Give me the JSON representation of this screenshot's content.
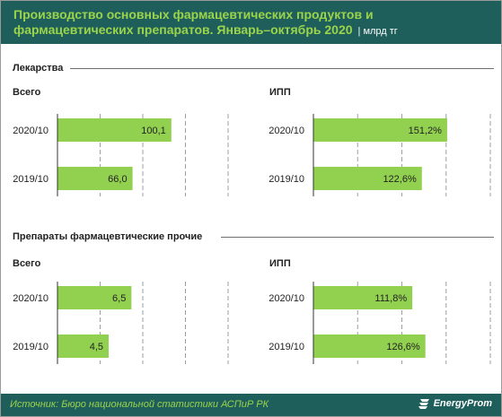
{
  "header": {
    "title": "Производство основных фармацевтических продуктов и фармацевтических препаратов. Январь–октябрь 2020",
    "unit": "| млрд тг"
  },
  "sections": [
    {
      "label": "Лекарства"
    },
    {
      "label": "Препараты  фармацевтические   прочие"
    }
  ],
  "chart_data": [
    {
      "type": "bar",
      "section": "Лекарства",
      "title": "Всего",
      "categories": [
        "2020/10",
        "2019/10"
      ],
      "values": [
        100.1,
        66.0
      ],
      "labels": [
        "100,1",
        "66,0"
      ]
    },
    {
      "type": "bar",
      "section": "Лекарства",
      "title": "ИПП",
      "categories": [
        "2020/10",
        "2019/10"
      ],
      "values": [
        151.2,
        122.6
      ],
      "labels": [
        "151,2%",
        "122,6%"
      ]
    },
    {
      "type": "bar",
      "section": "Препараты  фармацевтические   прочие",
      "title": "Всего",
      "categories": [
        "2020/10",
        "2019/10"
      ],
      "values": [
        6.5,
        4.5
      ],
      "labels": [
        "6,5",
        "4,5"
      ]
    },
    {
      "type": "bar",
      "section": "Препараты  фармацевтические   прочие",
      "title": "ИПП",
      "categories": [
        "2020/10",
        "2019/10"
      ],
      "values": [
        111.8,
        126.6
      ],
      "labels": [
        "111,8%",
        "126,6%"
      ]
    }
  ],
  "colors": {
    "bar": "#92d050",
    "header": "#1e5f5c",
    "title": "#9bd44a"
  },
  "footer": {
    "source": "Источник: Бюро национальной  статистики АСПиР РК",
    "brand": "EnergyProm"
  },
  "icons": {
    "brand": "energyprom-logo-icon"
  }
}
